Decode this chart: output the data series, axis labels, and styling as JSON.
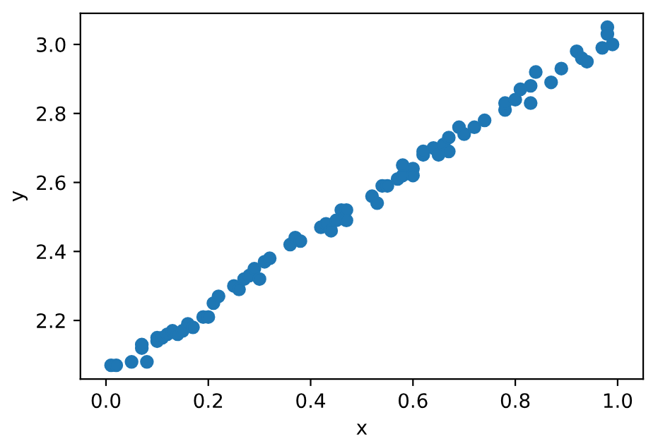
{
  "chart_data": {
    "type": "scatter",
    "xlabel": "x",
    "ylabel": "y",
    "marker": "circle",
    "xlim": [
      -0.05,
      1.05
    ],
    "ylim": [
      2.03,
      3.09
    ],
    "xticks": [
      {
        "value": 0,
        "label": "0.0"
      },
      0.2,
      0.4,
      0.6,
      0.8,
      {
        "value": 1,
        "label": "1.0"
      }
    ],
    "yticks": [
      2.2,
      2.4,
      2.6,
      2.8,
      {
        "value": 3,
        "label": "3.0"
      }
    ],
    "grid": false,
    "series": [
      {
        "color": "#1f77b4",
        "x": [
          0.01,
          0.02,
          0.05,
          0.07,
          0.07,
          0.08,
          0.1,
          0.1,
          0.11,
          0.12,
          0.13,
          0.14,
          0.15,
          0.16,
          0.17,
          0.19,
          0.2,
          0.21,
          0.22,
          0.25,
          0.26,
          0.27,
          0.28,
          0.29,
          0.3,
          0.31,
          0.32,
          0.36,
          0.37,
          0.38,
          0.42,
          0.43,
          0.44,
          0.45,
          0.46,
          0.47,
          0.47,
          0.52,
          0.53,
          0.54,
          0.55,
          0.57,
          0.58,
          0.58,
          0.6,
          0.6,
          0.62,
          0.62,
          0.64,
          0.65,
          0.66,
          0.67,
          0.67,
          0.69,
          0.7,
          0.72,
          0.74,
          0.78,
          0.78,
          0.8,
          0.81,
          0.83,
          0.83,
          0.84,
          0.87,
          0.89,
          0.92,
          0.93,
          0.94,
          0.97,
          0.98,
          0.98,
          0.99
        ],
        "values": [
          2.07,
          2.07,
          2.08,
          2.12,
          2.13,
          2.08,
          2.15,
          2.14,
          2.15,
          2.16,
          2.17,
          2.16,
          2.17,
          2.19,
          2.18,
          2.21,
          2.21,
          2.25,
          2.27,
          2.3,
          2.29,
          2.32,
          2.33,
          2.35,
          2.32,
          2.37,
          2.38,
          2.42,
          2.44,
          2.43,
          2.47,
          2.48,
          2.46,
          2.49,
          2.52,
          2.49,
          2.52,
          2.56,
          2.54,
          2.59,
          2.59,
          2.61,
          2.62,
          2.65,
          2.64,
          2.62,
          2.68,
          2.69,
          2.7,
          2.68,
          2.71,
          2.73,
          2.69,
          2.76,
          2.74,
          2.76,
          2.78,
          2.81,
          2.83,
          2.84,
          2.87,
          2.83,
          2.88,
          2.92,
          2.89,
          2.93,
          2.98,
          2.96,
          2.95,
          2.99,
          3.05,
          3.03,
          3.0
        ]
      }
    ]
  }
}
